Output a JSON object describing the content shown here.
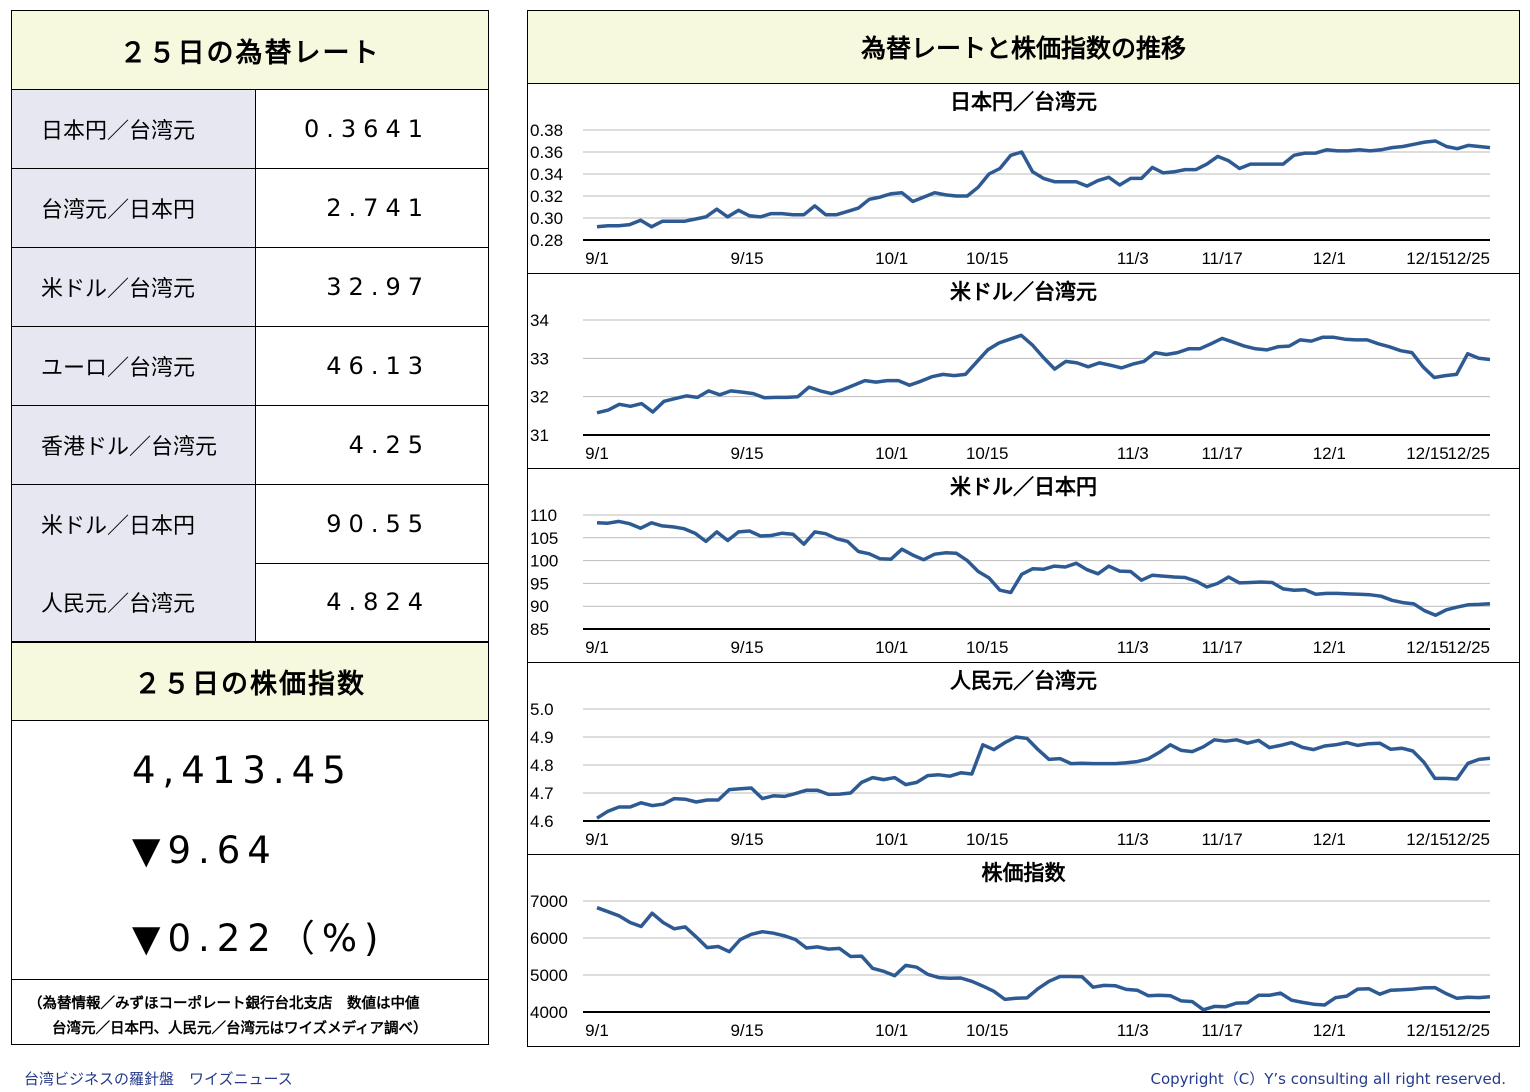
{
  "left": {
    "rates_title": "２５日の為替レート",
    "rates": [
      {
        "label": "日本円／台湾元",
        "value": "0.3641"
      },
      {
        "label": "台湾元／日本円",
        "value": "2.741"
      },
      {
        "label": "米ドル／台湾元",
        "value": "32.97"
      },
      {
        "label": "ユーロ／台湾元",
        "value": "46.13"
      },
      {
        "label": "香港ドル／台湾元",
        "value": "4.25"
      },
      {
        "label": "米ドル／日本円",
        "value": "90.55"
      },
      {
        "label": "人民元／台湾元",
        "value": "4.824"
      }
    ],
    "index_title": "２５日の株価指数",
    "index_value": "4,413.45",
    "index_change": "▼9.64",
    "index_change_pct": "▼0.22（%)",
    "source_line1": "（為替情報／みずほコーポレート銀行台北支店　数値は中値",
    "source_line2": "台湾元／日本円、人民元／台湾元はワイズメディア調べ）"
  },
  "right_title": "為替レートと株価指数の推移",
  "footer": {
    "left": "台湾ビジネスの羅針盤　ワイズニュース",
    "right": "Copyright（C）Y’s consulting all right reserved."
  },
  "chart_data": [
    {
      "type": "line",
      "title": "日本円／台湾元",
      "x_ticks": [
        "9/1",
        "9/15",
        "10/1",
        "10/15",
        "11/3",
        "11/17",
        "12/1",
        "12/15",
        "12/25"
      ],
      "y_ticks": [
        "0.38",
        "0.36",
        "0.34",
        "0.32",
        "0.30",
        "0.28"
      ],
      "ylim": [
        0.28,
        0.38
      ],
      "color": "#2e5a94",
      "values": [
        0.292,
        0.293,
        0.293,
        0.294,
        0.298,
        0.292,
        0.297,
        0.297,
        0.297,
        0.299,
        0.301,
        0.308,
        0.301,
        0.307,
        0.302,
        0.301,
        0.304,
        0.304,
        0.303,
        0.303,
        0.311,
        0.303,
        0.303,
        0.306,
        0.309,
        0.317,
        0.319,
        0.322,
        0.323,
        0.315,
        0.319,
        0.323,
        0.321,
        0.32,
        0.32,
        0.328,
        0.34,
        0.345,
        0.357,
        0.36,
        0.342,
        0.336,
        0.333,
        0.333,
        0.333,
        0.329,
        0.334,
        0.337,
        0.33,
        0.336,
        0.336,
        0.346,
        0.341,
        0.342,
        0.344,
        0.344,
        0.349,
        0.356,
        0.352,
        0.345,
        0.349,
        0.349,
        0.349,
        0.349,
        0.357,
        0.359,
        0.359,
        0.362,
        0.361,
        0.361,
        0.362,
        0.361,
        0.362,
        0.364,
        0.365,
        0.367,
        0.369,
        0.37,
        0.365,
        0.363,
        0.366,
        0.365,
        0.364
      ]
    },
    {
      "type": "line",
      "title": "米ドル／台湾元",
      "x_ticks": [
        "9/1",
        "9/15",
        "10/1",
        "10/15",
        "11/3",
        "11/17",
        "12/1",
        "12/15",
        "12/25"
      ],
      "y_ticks": [
        "34",
        "33",
        "32",
        "31"
      ],
      "ylim": [
        31,
        34
      ],
      "color": "#2e5a94",
      "values": [
        31.58,
        31.65,
        31.8,
        31.75,
        31.82,
        31.6,
        31.88,
        31.95,
        32.02,
        31.98,
        32.15,
        32.05,
        32.15,
        32.12,
        32.08,
        31.97,
        31.98,
        31.98,
        32.0,
        32.25,
        32.15,
        32.08,
        32.18,
        32.3,
        32.42,
        32.38,
        32.42,
        32.42,
        32.3,
        32.4,
        32.52,
        32.58,
        32.55,
        32.58,
        32.9,
        33.22,
        33.4,
        33.5,
        33.6,
        33.35,
        33.02,
        32.72,
        32.92,
        32.88,
        32.78,
        32.88,
        32.82,
        32.75,
        32.85,
        32.92,
        33.15,
        33.1,
        33.15,
        33.25,
        33.25,
        33.38,
        33.52,
        33.42,
        33.32,
        33.25,
        33.22,
        33.3,
        33.32,
        33.48,
        33.45,
        33.55,
        33.55,
        33.5,
        33.48,
        33.48,
        33.38,
        33.3,
        33.2,
        33.15,
        32.78,
        32.5,
        32.55,
        32.58,
        33.12,
        33.0,
        32.97
      ]
    },
    {
      "type": "line",
      "title": "米ドル／日本円",
      "x_ticks": [
        "9/1",
        "9/15",
        "10/1",
        "10/15",
        "11/3",
        "11/17",
        "12/1",
        "12/15",
        "12/25"
      ],
      "y_ticks": [
        "110",
        "105",
        "100",
        "95",
        "90",
        "85"
      ],
      "ylim": [
        85,
        110
      ],
      "color": "#2e5a94",
      "values": [
        108.3,
        108.2,
        108.6,
        108.1,
        107.1,
        108.3,
        107.6,
        107.4,
        107.0,
        106.0,
        104.2,
        106.3,
        104.4,
        106.3,
        106.5,
        105.4,
        105.5,
        106.0,
        105.8,
        103.6,
        106.3,
        105.9,
        104.8,
        104.2,
        102.0,
        101.5,
        100.4,
        100.3,
        102.5,
        101.2,
        100.2,
        101.4,
        101.7,
        101.6,
        100.0,
        97.6,
        96.2,
        93.5,
        93.0,
        97.0,
        98.2,
        98.1,
        98.8,
        98.6,
        99.4,
        98.0,
        97.1,
        98.8,
        97.7,
        97.6,
        95.7,
        96.8,
        96.6,
        96.4,
        96.3,
        95.5,
        94.2,
        95.0,
        96.4,
        95.1,
        95.2,
        95.3,
        95.2,
        93.8,
        93.5,
        93.6,
        92.6,
        92.8,
        92.8,
        92.7,
        92.6,
        92.5,
        92.2,
        91.3,
        90.8,
        90.5,
        89.0,
        88.0,
        89.2,
        89.8,
        90.3,
        90.4,
        90.55
      ]
    },
    {
      "type": "line",
      "title": "人民元／台湾元",
      "x_ticks": [
        "9/1",
        "9/15",
        "10/1",
        "10/15",
        "11/3",
        "11/17",
        "12/1",
        "12/15",
        "12/25"
      ],
      "y_ticks": [
        "5.0",
        "4.9",
        "4.8",
        "4.7",
        "4.6"
      ],
      "ylim": [
        4.6,
        5.0
      ],
      "color": "#2e5a94",
      "values": [
        4.61,
        4.635,
        4.65,
        4.65,
        4.665,
        4.655,
        4.66,
        4.68,
        4.678,
        4.668,
        4.675,
        4.675,
        4.712,
        4.715,
        4.718,
        4.68,
        4.69,
        4.688,
        4.698,
        4.71,
        4.71,
        4.695,
        4.696,
        4.7,
        4.738,
        4.755,
        4.748,
        4.755,
        4.73,
        4.738,
        4.762,
        4.765,
        4.76,
        4.772,
        4.768,
        4.872,
        4.855,
        4.88,
        4.9,
        4.895,
        4.855,
        4.82,
        4.823,
        4.805,
        4.806,
        4.805,
        4.805,
        4.805,
        4.808,
        4.812,
        4.822,
        4.845,
        4.872,
        4.852,
        4.848,
        4.865,
        4.89,
        4.885,
        4.89,
        4.878,
        4.888,
        4.862,
        4.87,
        4.88,
        4.863,
        4.855,
        4.868,
        4.872,
        4.88,
        4.87,
        4.876,
        4.878,
        4.856,
        4.86,
        4.85,
        4.81,
        4.752,
        4.752,
        4.75,
        4.806,
        4.82,
        4.824
      ]
    },
    {
      "type": "line",
      "title": "株価指数",
      "x_ticks": [
        "9/1",
        "9/15",
        "10/1",
        "10/15",
        "11/3",
        "11/17",
        "12/1",
        "12/15",
        "12/25"
      ],
      "y_ticks": [
        "7000",
        "6000",
        "5000",
        "4000"
      ],
      "ylim": [
        4000,
        7000
      ],
      "color": "#2e5a94",
      "values": [
        6820,
        6710,
        6600,
        6420,
        6310,
        6670,
        6420,
        6250,
        6300,
        6030,
        5740,
        5770,
        5630,
        5960,
        6100,
        6170,
        6130,
        6060,
        5960,
        5730,
        5760,
        5700,
        5720,
        5500,
        5510,
        5180,
        5100,
        4980,
        5260,
        5210,
        5020,
        4930,
        4910,
        4920,
        4830,
        4700,
        4560,
        4340,
        4370,
        4380,
        4630,
        4830,
        4960,
        4960,
        4950,
        4670,
        4720,
        4710,
        4610,
        4590,
        4440,
        4450,
        4440,
        4300,
        4280,
        4060,
        4150,
        4140,
        4240,
        4250,
        4450,
        4450,
        4510,
        4320,
        4260,
        4210,
        4190,
        4390,
        4430,
        4620,
        4630,
        4480,
        4590,
        4600,
        4620,
        4650,
        4660,
        4500,
        4370,
        4400,
        4390,
        4413
      ]
    }
  ]
}
